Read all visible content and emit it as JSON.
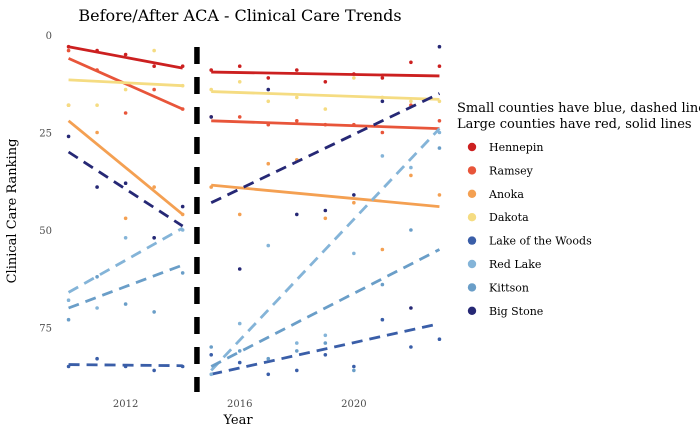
{
  "chart_data": {
    "type": "scatter",
    "title": "Before/After ACA - Clinical Care Trends",
    "xlabel": "Year",
    "ylabel": "Clinical Care Ranking",
    "xlim": [
      2009.7,
      2023.3
    ],
    "ylim": [
      0,
      90
    ],
    "y_reversed": true,
    "x_ticks": [
      2012,
      2016,
      2020
    ],
    "y_ticks": [
      0,
      25,
      50,
      75
    ],
    "grid": false,
    "aca_divider_x": 2014.5,
    "legend_title": [
      "Small counties have blue, dashed lines",
      "Large counties have red, solid lines"
    ],
    "legend_position": "right",
    "series": [
      {
        "name": "Hennepin",
        "color": "#cc2020",
        "dashed": false,
        "points": [
          [
            2010,
            3
          ],
          [
            2011,
            4
          ],
          [
            2012,
            5
          ],
          [
            2013,
            8
          ],
          [
            2014,
            8
          ],
          [
            2015,
            9
          ],
          [
            2016,
            8
          ],
          [
            2017,
            11
          ],
          [
            2018,
            9
          ],
          [
            2019,
            12
          ],
          [
            2020,
            10
          ],
          [
            2021,
            11
          ],
          [
            2022,
            7
          ],
          [
            2023,
            8
          ]
        ],
        "trend_pre": [
          [
            2010,
            3
          ],
          [
            2014,
            8.5
          ]
        ],
        "trend_post": [
          [
            2015,
            9.5
          ],
          [
            2023,
            10.5
          ]
        ]
      },
      {
        "name": "Ramsey",
        "color": "#e8553a",
        "dashed": false,
        "points": [
          [
            2010,
            4
          ],
          [
            2011,
            9
          ],
          [
            2012,
            20
          ],
          [
            2013,
            14
          ],
          [
            2014,
            19
          ],
          [
            2015,
            21
          ],
          [
            2016,
            21
          ],
          [
            2017,
            23
          ],
          [
            2018,
            22
          ],
          [
            2019,
            23
          ],
          [
            2020,
            23
          ],
          [
            2021,
            25
          ],
          [
            2022,
            18
          ],
          [
            2023,
            22
          ]
        ],
        "trend_pre": [
          [
            2010,
            6
          ],
          [
            2014,
            19
          ]
        ],
        "trend_post": [
          [
            2015,
            22
          ],
          [
            2023,
            24
          ]
        ]
      },
      {
        "name": "Anoka",
        "color": "#f4a052",
        "dashed": false,
        "points": [
          [
            2010,
            18
          ],
          [
            2011,
            25
          ],
          [
            2012,
            47
          ],
          [
            2013,
            39
          ],
          [
            2014,
            46
          ],
          [
            2015,
            39
          ],
          [
            2016,
            46
          ],
          [
            2017,
            33
          ],
          [
            2018,
            32
          ],
          [
            2019,
            47
          ],
          [
            2020,
            43
          ],
          [
            2021,
            55
          ],
          [
            2022,
            36
          ],
          [
            2023,
            41
          ]
        ],
        "trend_pre": [
          [
            2010,
            22
          ],
          [
            2014,
            46
          ]
        ],
        "trend_post": [
          [
            2015,
            38.5
          ],
          [
            2023,
            44
          ]
        ]
      },
      {
        "name": "Dakota",
        "color": "#f5dc82",
        "dashed": false,
        "points": [
          [
            2010,
            18
          ],
          [
            2011,
            18
          ],
          [
            2012,
            14
          ],
          [
            2013,
            4
          ],
          [
            2014,
            13
          ],
          [
            2015,
            14
          ],
          [
            2016,
            12
          ],
          [
            2017,
            17
          ],
          [
            2018,
            16
          ],
          [
            2019,
            19
          ],
          [
            2020,
            11
          ],
          [
            2021,
            16
          ],
          [
            2022,
            17
          ],
          [
            2023,
            17
          ]
        ],
        "trend_pre": [
          [
            2010,
            11.5
          ],
          [
            2014,
            13
          ]
        ],
        "trend_post": [
          [
            2015,
            14.5
          ],
          [
            2023,
            16.5
          ]
        ]
      },
      {
        "name": "Lake of the Woods",
        "color": "#3a5ea8",
        "dashed": true,
        "points": [
          [
            2010,
            85
          ],
          [
            2011,
            83
          ],
          [
            2012,
            85
          ],
          [
            2013,
            86
          ],
          [
            2014,
            85
          ],
          [
            2015,
            82
          ],
          [
            2016,
            84
          ],
          [
            2017,
            87
          ],
          [
            2018,
            86
          ],
          [
            2019,
            82
          ],
          [
            2020,
            85
          ],
          [
            2021,
            73
          ],
          [
            2022,
            80
          ],
          [
            2023,
            78
          ]
        ],
        "trend_pre": [
          [
            2010,
            84.5
          ],
          [
            2014,
            84.8
          ]
        ],
        "trend_post": [
          [
            2015,
            87
          ],
          [
            2023,
            74
          ]
        ]
      },
      {
        "name": "Red Lake",
        "color": "#84b4d8",
        "dashed": true,
        "points": [
          [
            2010,
            68
          ],
          [
            2011,
            70
          ],
          [
            2012,
            52
          ],
          [
            2013,
            52
          ],
          [
            2014,
            50
          ],
          [
            2015,
            87
          ],
          [
            2016,
            74
          ],
          [
            2017,
            54
          ],
          [
            2018,
            79
          ],
          [
            2019,
            77
          ],
          [
            2020,
            56
          ],
          [
            2021,
            31
          ],
          [
            2022,
            34
          ],
          [
            2023,
            25
          ]
        ],
        "trend_pre": [
          [
            2010,
            66
          ],
          [
            2014,
            49.5
          ]
        ],
        "trend_post": [
          [
            2015,
            86
          ],
          [
            2023,
            24
          ]
        ]
      },
      {
        "name": "Kittson",
        "color": "#6a9ec8",
        "dashed": true,
        "points": [
          [
            2010,
            73
          ],
          [
            2011,
            62
          ],
          [
            2012,
            69
          ],
          [
            2013,
            71
          ],
          [
            2014,
            61
          ],
          [
            2015,
            80
          ],
          [
            2016,
            81
          ],
          [
            2017,
            83
          ],
          [
            2018,
            81
          ],
          [
            2019,
            79
          ],
          [
            2020,
            86
          ],
          [
            2021,
            64
          ],
          [
            2022,
            50
          ],
          [
            2023,
            29
          ]
        ],
        "trend_pre": [
          [
            2010,
            70
          ],
          [
            2014,
            59
          ]
        ],
        "trend_post": [
          [
            2015,
            85
          ],
          [
            2023,
            55
          ]
        ]
      },
      {
        "name": "Big Stone",
        "color": "#262875",
        "dashed": true,
        "points": [
          [
            2010,
            26
          ],
          [
            2011,
            39
          ],
          [
            2012,
            38
          ],
          [
            2013,
            52
          ],
          [
            2014,
            44
          ],
          [
            2015,
            21
          ],
          [
            2016,
            60
          ],
          [
            2017,
            14
          ],
          [
            2018,
            46
          ],
          [
            2019,
            45
          ],
          [
            2020,
            41
          ],
          [
            2021,
            17
          ],
          [
            2022,
            70
          ],
          [
            2023,
            3
          ]
        ],
        "trend_pre": [
          [
            2010,
            30
          ],
          [
            2014,
            49
          ]
        ],
        "trend_post": [
          [
            2015,
            43
          ],
          [
            2023,
            15
          ]
        ]
      }
    ]
  }
}
